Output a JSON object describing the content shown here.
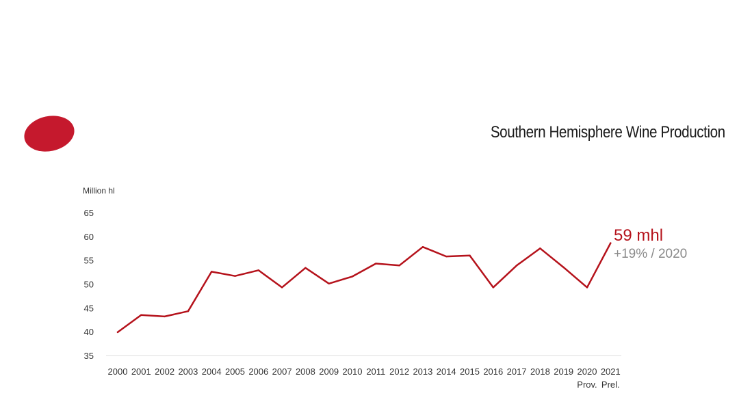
{
  "chart_data": {
    "type": "line",
    "title": "Southern Hemisphere Wine Production",
    "ylabel": "Million hl",
    "xlabel": "",
    "ylim": [
      35,
      65
    ],
    "yticks": [
      35,
      40,
      45,
      50,
      55,
      60,
      65
    ],
    "grid": false,
    "categories": [
      "2000",
      "2001",
      "2002",
      "2003",
      "2004",
      "2005",
      "2006",
      "2007",
      "2008",
      "2009",
      "2010",
      "2011",
      "2012",
      "2013",
      "2014",
      "2015",
      "2016",
      "2017",
      "2018",
      "2019",
      "2020",
      "2021"
    ],
    "category_sublabels": [
      "",
      "",
      "",
      "",
      "",
      "",
      "",
      "",
      "",
      "",
      "",
      "",
      "",
      "",
      "",
      "",
      "",
      "",
      "",
      "",
      "Prov.",
      "Prel."
    ],
    "series": [
      {
        "values": [
          39.9,
          43.5,
          43.2,
          44.3,
          52.6,
          51.7,
          52.9,
          49.3,
          53.4,
          50.1,
          51.6,
          54.3,
          53.9,
          57.8,
          55.8,
          56.0,
          49.3,
          53.9,
          57.5,
          53.5,
          49.3,
          58.6
        ]
      }
    ],
    "annotation": {
      "main": "59 mhl",
      "sub": "+19% / 2020"
    },
    "colors": {
      "line": "#b5121b",
      "logo": "#c5192d",
      "annotation_sub": "#8a8a8a",
      "axis": "#dddddd"
    }
  }
}
